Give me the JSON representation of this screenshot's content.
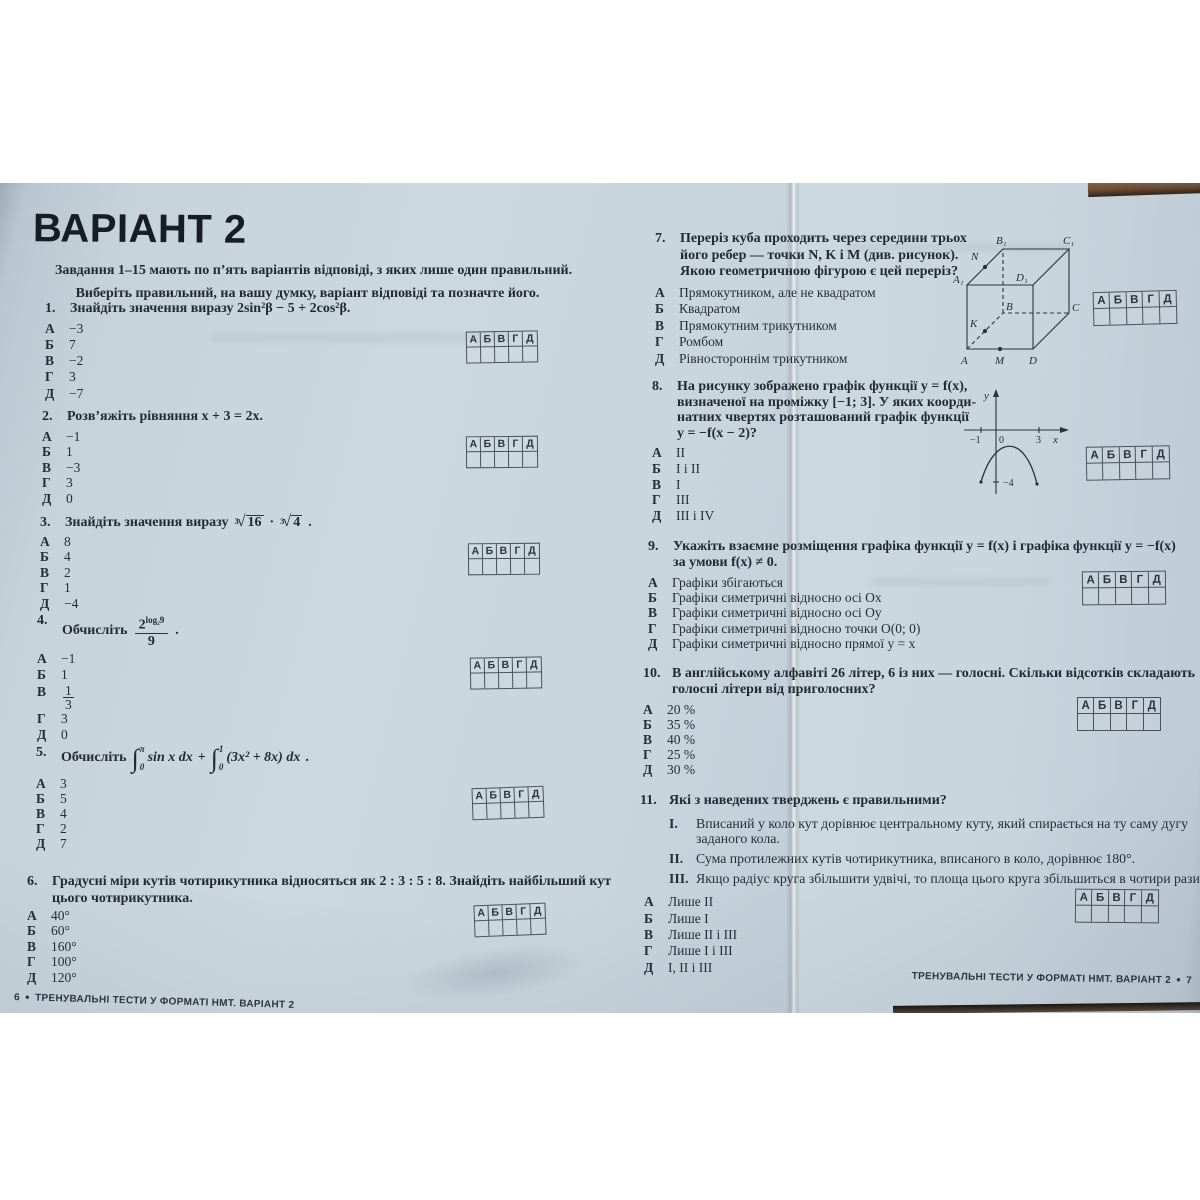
{
  "grid_letters": [
    "А",
    "Б",
    "В",
    "Г",
    "Д"
  ],
  "colors": {
    "page": "#ccd8e0",
    "ink": "#252e38",
    "table_wood": "#6a4b33"
  },
  "left": {
    "page_number": "6",
    "bullet": "●",
    "footer": "ТРЕНУВАЛЬНІ ТЕСТИ У ФОРМАТІ НМТ. ВАРІАНТ 2",
    "title": "ВАРІАНТ 2",
    "intro_lines": [
      "Завдання 1–15 мають по п’ять варіантів відповіді, з яких лише один правильний.",
      "Виберіть правильний, на вашу думку, варіант відповіді та позначте його."
    ],
    "q1": {
      "num": "1.",
      "lines": [
        "Знайдіть значення виразу 2sin²β − 5 + 2cos²β."
      ],
      "options": [
        {
          "l": "А",
          "v": "−3"
        },
        {
          "l": "Б",
          "v": "7"
        },
        {
          "l": "В",
          "v": "−2"
        },
        {
          "l": "Г",
          "v": "3"
        },
        {
          "l": "Д",
          "v": "−7"
        }
      ]
    },
    "q2": {
      "num": "2.",
      "lines": [
        "Розв’яжіть рівняння x + 3 = 2x."
      ],
      "options": [
        {
          "l": "А",
          "v": "−1"
        },
        {
          "l": "Б",
          "v": "1"
        },
        {
          "l": "В",
          "v": "−3"
        },
        {
          "l": "Г",
          "v": "3"
        },
        {
          "l": "Д",
          "v": "0"
        }
      ]
    },
    "q3": {
      "num": "3.",
      "pre": "Знайдіть значення виразу",
      "rad1_idx": "3",
      "rad1": "16",
      "dot": "·",
      "rad2_idx": "3",
      "rad2": "4",
      "post": ".",
      "options": [
        {
          "l": "А",
          "v": "8"
        },
        {
          "l": "Б",
          "v": "4"
        },
        {
          "l": "В",
          "v": "2"
        },
        {
          "l": "Г",
          "v": "1"
        },
        {
          "l": "Д",
          "v": "−4"
        }
      ]
    },
    "q4": {
      "num": "4.",
      "pre": "Обчисліть",
      "base": "2",
      "exp": "log₂9",
      "den": "9",
      "post": ".",
      "options": [
        {
          "l": "А",
          "v": "−1"
        },
        {
          "l": "Б",
          "v": "1"
        },
        {
          "l": "В",
          "frac": [
            "1",
            "3"
          ]
        },
        {
          "l": "Г",
          "v": "3"
        },
        {
          "l": "Д",
          "v": "0"
        }
      ]
    },
    "q5": {
      "num": "5.",
      "pre": "Обчисліть",
      "i1_up": "π",
      "i1_lo": "0",
      "i1_body": "sin x dx",
      "plus": "+",
      "i2_up": "1",
      "i2_lo": "0",
      "i2_body": "(3x² + 8x) dx",
      "post": ".",
      "options": [
        {
          "l": "А",
          "v": "3"
        },
        {
          "l": "Б",
          "v": "5"
        },
        {
          "l": "В",
          "v": "4"
        },
        {
          "l": "Г",
          "v": "2"
        },
        {
          "l": "Д",
          "v": "7"
        }
      ]
    },
    "q6": {
      "num": "6.",
      "lines": [
        "Градусні міри кутів чотирикутника відносяться як 2 : 3 : 5 : 8. Знайдіть найбільший кут",
        "цього чотирикутника."
      ],
      "options": [
        {
          "l": "А",
          "v": "40°"
        },
        {
          "l": "Б",
          "v": "60°"
        },
        {
          "l": "В",
          "v": "160°"
        },
        {
          "l": "Г",
          "v": "100°"
        },
        {
          "l": "Д",
          "v": "120°"
        }
      ]
    }
  },
  "right": {
    "page_number": "7",
    "bullet": "●",
    "footer": "ТРЕНУВАЛЬНІ ТЕСТИ У ФОРМАТІ НМТ. ВАРІАНТ 2",
    "q7": {
      "num": "7.",
      "lines": [
        "Переріз куба проходить через середини трьох",
        "його ребер — точки N, K і M (див. рисунок).",
        "Якою геометричною фігурою є цей переріз?"
      ],
      "options": [
        {
          "l": "А",
          "v": "Прямокутником, але не квадратом"
        },
        {
          "l": "Б",
          "v": "Квадратом"
        },
        {
          "l": "В",
          "v": "Прямокутним трикутником"
        },
        {
          "l": "Г",
          "v": "Ромбом"
        },
        {
          "l": "Д",
          "v": "Рівностороннім трикутником"
        }
      ],
      "figure": {
        "a1": "A₁",
        "b1": "B₁",
        "c1": "C₁",
        "d1": "D₁",
        "a": "A",
        "b": "B",
        "c": "C",
        "d": "D",
        "n": "N",
        "k": "K",
        "m": "M"
      }
    },
    "q8": {
      "num": "8.",
      "lines": [
        "На рисунку зображено графік функції y = f(x),",
        "визначеної на проміжку [−1; 3]. У яких коорди-",
        "натних чвертях розташований графік функції",
        "y = −f(x − 2)?"
      ],
      "options": [
        {
          "l": "А",
          "v": "II"
        },
        {
          "l": "Б",
          "v": "I і II"
        },
        {
          "l": "В",
          "v": "I"
        },
        {
          "l": "Г",
          "v": "III"
        },
        {
          "l": "Д",
          "v": "III і IV"
        }
      ],
      "figure": {
        "y": "y",
        "x": "x",
        "m1": "−1",
        "zero": "0",
        "three": "3",
        "m4": "−4"
      }
    },
    "q9": {
      "num": "9.",
      "lines": [
        "Укажіть взаємне розміщення графіка функції y = f(x) і графіка функції y = −f(x)",
        "за умови f(x) ≠ 0."
      ],
      "options": [
        {
          "l": "А",
          "v": "Графіки збігаються"
        },
        {
          "l": "Б",
          "v": "Графіки симетричні відносно осі Ox"
        },
        {
          "l": "В",
          "v": "Графіки симетричні відносно осі Oy"
        },
        {
          "l": "Г",
          "v": "Графіки симетричні відносно точки O(0; 0)"
        },
        {
          "l": "Д",
          "v": "Графіки симетричні відносно прямої y = x"
        }
      ]
    },
    "q10": {
      "num": "10.",
      "lines": [
        "В англійському алфавіті 26 літер, 6 із них — голосні. Скільки відсотків складають",
        "голосні літери від приголосних?"
      ],
      "options": [
        {
          "l": "А",
          "v": "20 %"
        },
        {
          "l": "Б",
          "v": "35 %"
        },
        {
          "l": "В",
          "v": "40 %"
        },
        {
          "l": "Г",
          "v": "25 %"
        },
        {
          "l": "Д",
          "v": "30 %"
        }
      ]
    },
    "q11": {
      "num": "11.",
      "lines": [
        "Які з наведених тверджень є правильними?"
      ],
      "statements": [
        {
          "n": "I.",
          "lines": [
            "Вписаний у коло кут дорівнює центральному куту, який спирається на ту саму дугу",
            "заданого кола."
          ]
        },
        {
          "n": "II.",
          "lines": [
            "Сума протилежних кутів чотирикутника, вписаного в коло, дорівнює 180°."
          ]
        },
        {
          "n": "III.",
          "lines": [
            "Якщо радіус круга збільшити удвічі, то площа цього круга збільшиться в чотири рази."
          ]
        }
      ],
      "options": [
        {
          "l": "А",
          "v": "Лише II"
        },
        {
          "l": "Б",
          "v": "Лише I"
        },
        {
          "l": "В",
          "v": "Лише II і III"
        },
        {
          "l": "Г",
          "v": "Лише I і III"
        },
        {
          "l": "Д",
          "v": "I, II і III"
        }
      ]
    }
  }
}
